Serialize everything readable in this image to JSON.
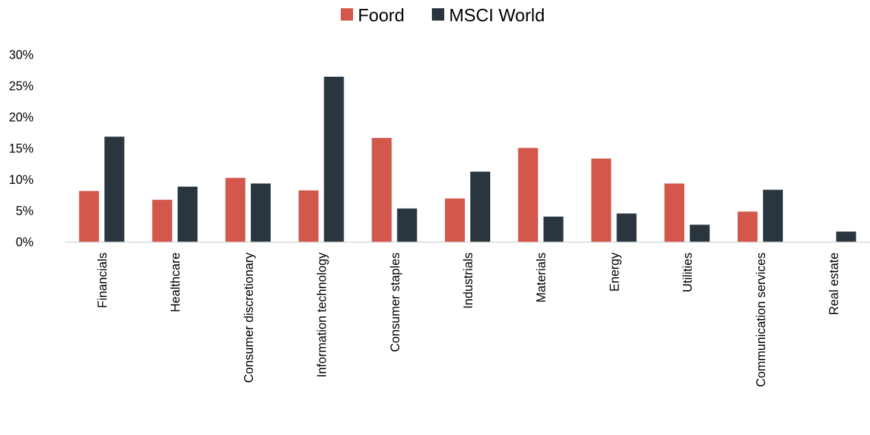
{
  "chart_data": {
    "type": "bar",
    "categories": [
      "Financials",
      "Healthcare",
      "Consumer discretionary",
      "Information technology",
      "Consumer staples",
      "Industrials",
      "Materials",
      "Energy",
      "Utilities",
      "Communication services",
      "Real estate"
    ],
    "series": [
      {
        "name": "Foord",
        "color": "#d4574b",
        "values": [
          8.2,
          6.8,
          10.3,
          8.3,
          16.7,
          7.0,
          15.1,
          13.4,
          9.4,
          4.9,
          0
        ]
      },
      {
        "name": "MSCI World",
        "color": "#2a363f",
        "values": [
          16.9,
          8.9,
          9.4,
          26.5,
          5.4,
          11.3,
          4.1,
          4.6,
          2.8,
          8.4,
          1.7
        ]
      }
    ],
    "yticks": [
      "0%",
      "5%",
      "10%",
      "15%",
      "20%",
      "25%",
      "30%"
    ],
    "ylim": [
      0,
      30
    ],
    "grid": false,
    "legend_position": "top-center"
  }
}
